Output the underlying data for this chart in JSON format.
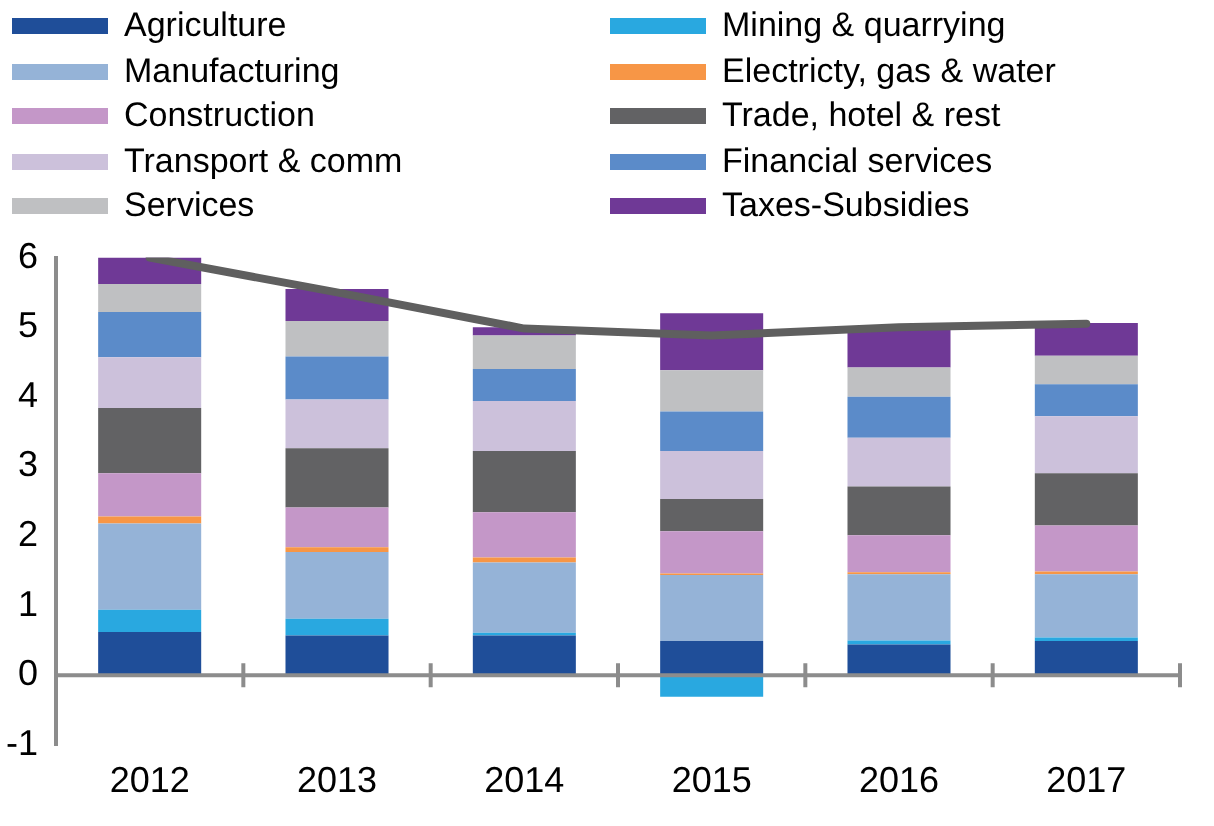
{
  "chart_data": {
    "type": "bar",
    "stacked": true,
    "categories": [
      "2012",
      "2013",
      "2014",
      "2015",
      "2016",
      "2017"
    ],
    "ylim": [
      -1,
      6
    ],
    "yticks": [
      -1,
      0,
      1,
      2,
      3,
      4,
      5,
      6
    ],
    "grid": false,
    "legend": "top",
    "series": [
      {
        "name": "Agriculture",
        "color": "#1f4e99",
        "values": [
          0.62,
          0.57,
          0.57,
          0.49,
          0.44,
          0.49
        ]
      },
      {
        "name": "Mining & quarrying",
        "color": "#29a8e0",
        "values": [
          0.32,
          0.24,
          0.04,
          -0.31,
          0.06,
          0.05
        ]
      },
      {
        "name": "Manufacturing",
        "color": "#95b3d7",
        "values": [
          1.24,
          0.96,
          1.01,
          0.95,
          0.95,
          0.91
        ]
      },
      {
        "name": "Electricty, gas & water",
        "color": "#f79646",
        "values": [
          0.1,
          0.07,
          0.07,
          0.02,
          0.03,
          0.04
        ]
      },
      {
        "name": "Construction",
        "color": "#c497c8",
        "values": [
          0.62,
          0.57,
          0.65,
          0.61,
          0.53,
          0.66
        ]
      },
      {
        "name": "Trade, hotel & rest",
        "color": "#626264",
        "values": [
          0.94,
          0.85,
          0.88,
          0.46,
          0.7,
          0.75
        ]
      },
      {
        "name": "Transport & comm",
        "color": "#ccc1db",
        "values": [
          0.73,
          0.7,
          0.72,
          0.69,
          0.7,
          0.82
        ]
      },
      {
        "name": "Financial services",
        "color": "#5b8bc9",
        "values": [
          0.65,
          0.62,
          0.46,
          0.57,
          0.59,
          0.46
        ]
      },
      {
        "name": "Services",
        "color": "#bfc0c2",
        "values": [
          0.4,
          0.51,
          0.48,
          0.59,
          0.42,
          0.41
        ]
      },
      {
        "name": "Taxes-Subsidies",
        "color": "#6f3996",
        "values": [
          0.38,
          0.46,
          0.12,
          0.82,
          0.56,
          0.47
        ]
      },
      {
        "type": "line",
        "color": "#5f5f5f",
        "values": [
          6.0,
          5.5,
          4.98,
          4.88,
          5.0,
          5.05
        ]
      }
    ]
  }
}
